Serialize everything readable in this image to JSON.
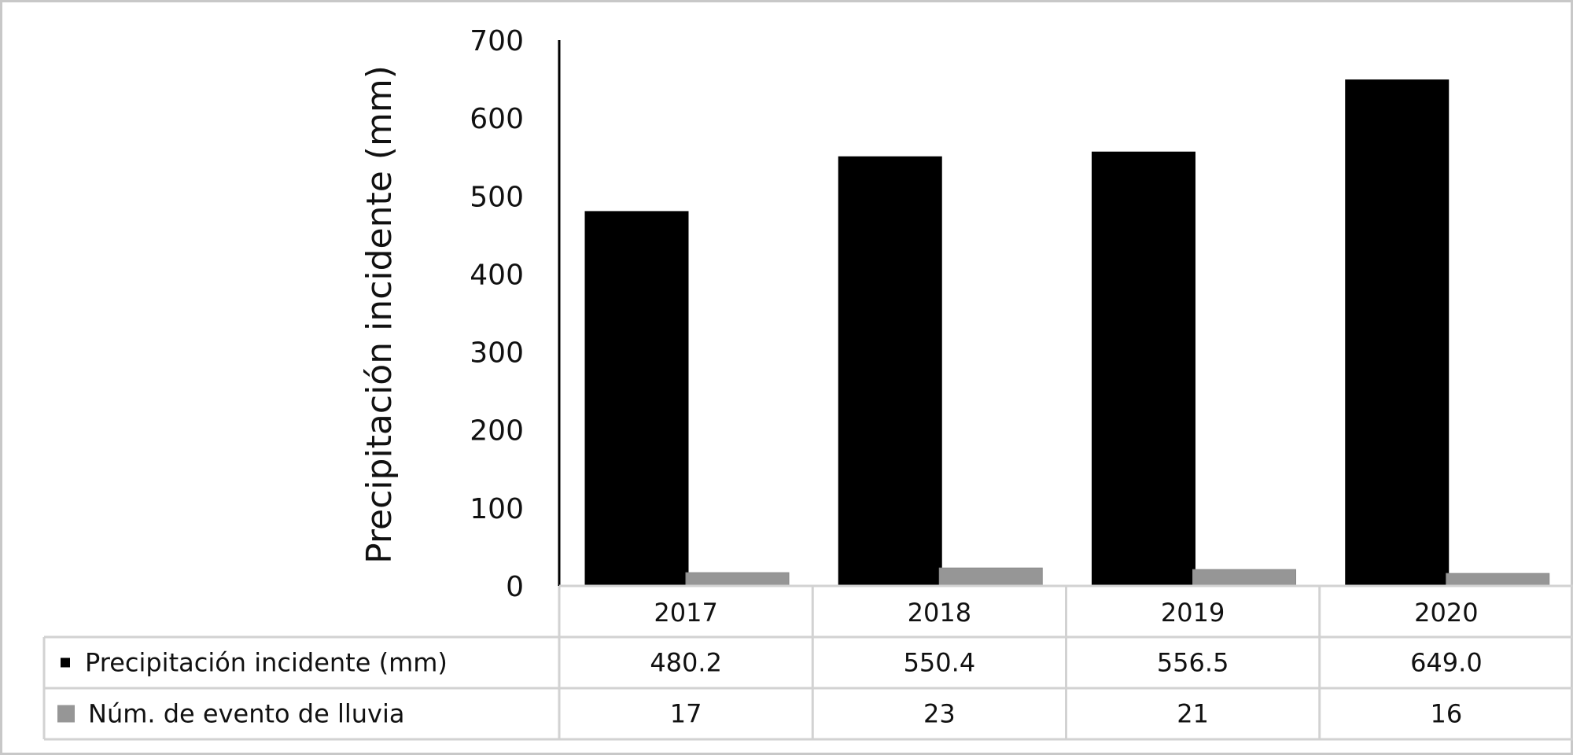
{
  "chart_data": {
    "type": "bar",
    "categories": [
      "2017",
      "2018",
      "2019",
      "2020"
    ],
    "ylabel": "Precipitación incidente (mm)",
    "ylim": [
      0,
      700
    ],
    "yticks": [
      0,
      100,
      200,
      300,
      400,
      500,
      600,
      700
    ],
    "grid": false,
    "legend": "data-table-below",
    "series": [
      {
        "name": "Precipitación incidente (mm)",
        "values": [
          480.2,
          550.4,
          556.5,
          649.0
        ],
        "labels": [
          "480.2",
          "550.4",
          "556.5",
          "649.0"
        ],
        "color": "#000000"
      },
      {
        "name": "Núm. de evento de lluvia",
        "values": [
          17,
          23,
          21,
          16
        ],
        "labels": [
          "17",
          "23",
          "21",
          "16"
        ],
        "color": "#969696"
      }
    ]
  }
}
